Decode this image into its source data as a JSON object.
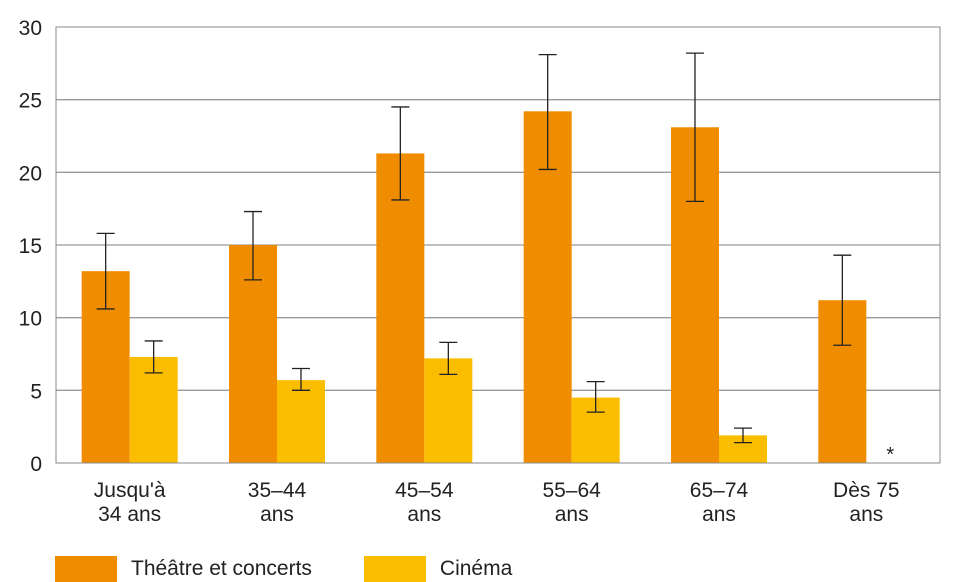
{
  "chart_data": {
    "type": "bar",
    "categories": [
      [
        "Jusqu'à",
        "34 ans"
      ],
      [
        "35–44",
        "ans"
      ],
      [
        "45–54",
        "ans"
      ],
      [
        "55–64",
        "ans"
      ],
      [
        "65–74",
        "ans"
      ],
      [
        "Dès 75",
        "ans"
      ]
    ],
    "series": [
      {
        "name": "Théâtre et concerts",
        "color": "#f08c00",
        "values": [
          13.2,
          15.0,
          21.3,
          24.2,
          23.1,
          11.2
        ],
        "error_low": [
          10.6,
          12.6,
          18.1,
          20.2,
          18.0,
          8.1
        ],
        "error_high": [
          15.8,
          17.3,
          24.5,
          28.1,
          28.2,
          14.3
        ]
      },
      {
        "name": "Cinéma",
        "color": "#fbbd00",
        "values": [
          7.3,
          5.7,
          7.2,
          4.5,
          1.9,
          null
        ],
        "error_low": [
          6.2,
          5.0,
          6.1,
          3.5,
          1.4,
          null
        ],
        "error_high": [
          8.4,
          6.5,
          8.3,
          5.6,
          2.4,
          null
        ]
      }
    ],
    "missing_marker": "*",
    "ylim": [
      0,
      30
    ],
    "yticks": [
      0,
      5,
      10,
      15,
      20,
      25,
      30
    ],
    "grid": true,
    "legend_position": "bottom-left",
    "title": "",
    "xlabel": "",
    "ylabel": ""
  }
}
